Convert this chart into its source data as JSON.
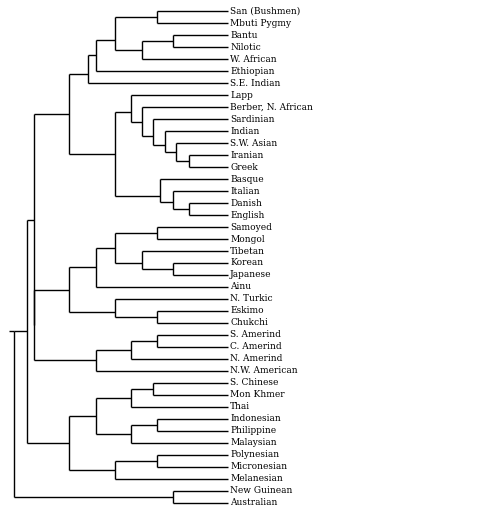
{
  "leaves": [
    "San (Bushmen)",
    "Mbuti Pygmy",
    "Bantu",
    "Nilotic",
    "W. African",
    "Ethiopian",
    "S.E. Indian",
    "Lapp",
    "Berber, N. African",
    "Sardinian",
    "Indian",
    "S.W. Asian",
    "Iranian",
    "Greek",
    "Basque",
    "Italian",
    "Danish",
    "English",
    "Samoyed",
    "Mongol",
    "Tibetan",
    "Korean",
    "Japanese",
    "Ainu",
    "N. Turkic",
    "Eskimo",
    "Chukchi",
    "S. Amerind",
    "C. Amerind",
    "N. Amerind",
    "N.W. American",
    "S. Chinese",
    "Mon Khmer",
    "Thai",
    "Indonesian",
    "Philippine",
    "Malaysian",
    "Polynesian",
    "Micronesian",
    "Melanesian",
    "New Guinean",
    "Australian"
  ],
  "background": "#ffffff",
  "line_color": "#000000",
  "line_width": 1.0,
  "font_size": 6.5,
  "font_family": "DejaVu Serif"
}
